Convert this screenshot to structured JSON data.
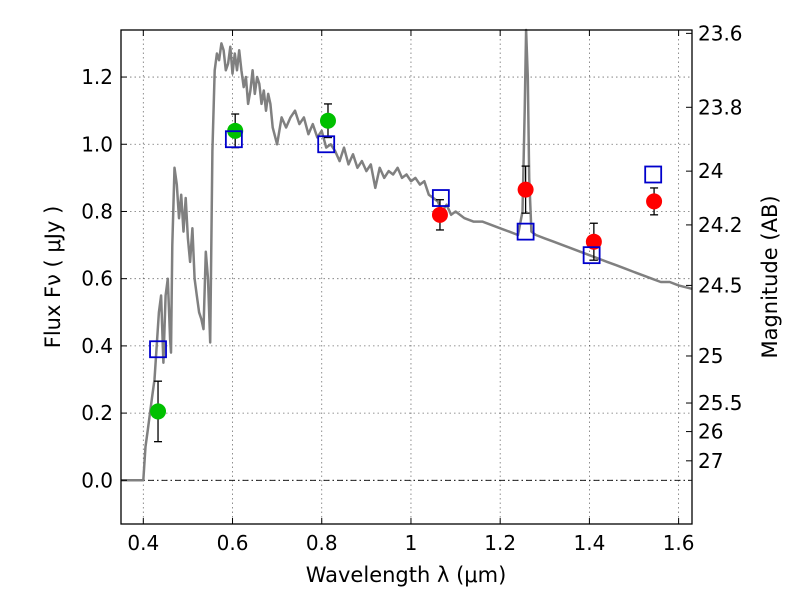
{
  "chart_data": {
    "type": "scatter",
    "xlabel": "Wavelength  λ (μm)",
    "ylabel": "Flux  Fν  ( μJy )",
    "ylabel_right": "Magnitude (AB)",
    "xlim": [
      0.35,
      1.63
    ],
    "ylim": [
      -0.13,
      1.34
    ],
    "x_ticks": [
      0.4,
      0.6,
      0.8,
      1.0,
      1.2,
      1.4,
      1.6
    ],
    "x_tick_labels": [
      "0.4",
      "0.6",
      "0.8",
      "1",
      "1.2",
      "1.4",
      "1.6"
    ],
    "y_ticks": [
      0.0,
      0.2,
      0.4,
      0.6,
      0.8,
      1.0,
      1.2
    ],
    "y_tick_labels": [
      "0.0",
      "0.2",
      "0.4",
      "0.6",
      "0.8",
      "1.0",
      "1.2"
    ],
    "right_ticks": [
      {
        "label": "23.6",
        "flux": 1.33
      },
      {
        "label": "23.8",
        "flux": 1.11
      },
      {
        "label": "24",
        "flux": 0.92
      },
      {
        "label": "24.2",
        "flux": 0.76
      },
      {
        "label": "24.5",
        "flux": 0.58
      },
      {
        "label": "25",
        "flux": 0.37
      },
      {
        "label": "25.5",
        "flux": 0.23
      },
      {
        "label": "26",
        "flux": 0.145
      },
      {
        "label": "27",
        "flux": 0.058
      }
    ],
    "grid": true,
    "colors": {
      "model": "#808080",
      "green_points": "#00c000",
      "red_points": "#ff0000",
      "model_boxes": "#0000cc",
      "error_bars": "#000000"
    },
    "model_sed": {
      "x": [
        0.35,
        0.4,
        0.405,
        0.41,
        0.415,
        0.42,
        0.425,
        0.43,
        0.435,
        0.44,
        0.445,
        0.45,
        0.455,
        0.46,
        0.462,
        0.465,
        0.47,
        0.475,
        0.48,
        0.485,
        0.49,
        0.495,
        0.5,
        0.505,
        0.51,
        0.515,
        0.52,
        0.525,
        0.53,
        0.535,
        0.54,
        0.545,
        0.55,
        0.555,
        0.56,
        0.565,
        0.57,
        0.575,
        0.58,
        0.585,
        0.59,
        0.595,
        0.6,
        0.605,
        0.61,
        0.615,
        0.62,
        0.625,
        0.63,
        0.635,
        0.64,
        0.645,
        0.65,
        0.655,
        0.66,
        0.665,
        0.67,
        0.675,
        0.68,
        0.685,
        0.69,
        0.7,
        0.71,
        0.72,
        0.73,
        0.74,
        0.75,
        0.76,
        0.77,
        0.78,
        0.79,
        0.8,
        0.81,
        0.82,
        0.83,
        0.84,
        0.85,
        0.86,
        0.87,
        0.88,
        0.89,
        0.9,
        0.91,
        0.92,
        0.93,
        0.94,
        0.95,
        0.96,
        0.97,
        0.98,
        0.99,
        1.0,
        1.01,
        1.02,
        1.03,
        1.04,
        1.05,
        1.06,
        1.07,
        1.08,
        1.09,
        1.1,
        1.12,
        1.14,
        1.16,
        1.18,
        1.2,
        1.22,
        1.24,
        1.25,
        1.255,
        1.258,
        1.262,
        1.265,
        1.27,
        1.28,
        1.3,
        1.32,
        1.34,
        1.36,
        1.38,
        1.4,
        1.42,
        1.44,
        1.46,
        1.48,
        1.5,
        1.52,
        1.54,
        1.56,
        1.58,
        1.6,
        1.63
      ],
      "y": [
        0.0,
        0.0,
        0.1,
        0.15,
        0.2,
        0.25,
        0.3,
        0.4,
        0.5,
        0.55,
        0.35,
        0.55,
        0.6,
        0.42,
        0.38,
        0.7,
        0.93,
        0.88,
        0.78,
        0.85,
        0.74,
        0.84,
        0.72,
        0.65,
        0.75,
        0.6,
        0.55,
        0.5,
        0.48,
        0.45,
        0.68,
        0.6,
        0.41,
        0.98,
        1.22,
        1.27,
        1.25,
        1.3,
        1.28,
        1.22,
        1.24,
        1.29,
        1.21,
        1.27,
        1.22,
        1.28,
        1.22,
        1.17,
        1.2,
        1.12,
        1.16,
        1.22,
        1.15,
        1.2,
        1.18,
        1.12,
        1.16,
        1.1,
        1.15,
        1.12,
        1.05,
        1.0,
        1.08,
        1.05,
        1.08,
        1.1,
        1.06,
        1.08,
        1.03,
        1.06,
        1.02,
        1.04,
        0.99,
        1.0,
        0.98,
        0.95,
        0.99,
        0.94,
        0.97,
        0.93,
        0.95,
        0.92,
        0.94,
        0.87,
        0.93,
        0.9,
        0.92,
        0.91,
        0.93,
        0.9,
        0.91,
        0.89,
        0.9,
        0.88,
        0.89,
        0.85,
        0.84,
        0.83,
        0.8,
        0.82,
        0.79,
        0.8,
        0.78,
        0.77,
        0.77,
        0.76,
        0.75,
        0.74,
        0.73,
        0.8,
        1.1,
        1.34,
        1.2,
        0.9,
        0.74,
        0.73,
        0.72,
        0.71,
        0.7,
        0.69,
        0.68,
        0.67,
        0.66,
        0.65,
        0.64,
        0.63,
        0.62,
        0.61,
        0.6,
        0.59,
        0.59,
        0.58,
        0.57
      ]
    },
    "series": [
      {
        "style": "green-circle",
        "points": [
          {
            "x": 0.433,
            "y": 0.205,
            "err": 0.09
          },
          {
            "x": 0.606,
            "y": 1.04,
            "err": 0.05
          },
          {
            "x": 0.814,
            "y": 1.07,
            "err": 0.05
          }
        ]
      },
      {
        "style": "red-circle",
        "points": [
          {
            "x": 1.065,
            "y": 0.79,
            "err": 0.045
          },
          {
            "x": 1.257,
            "y": 0.865,
            "err": 0.07
          },
          {
            "x": 1.41,
            "y": 0.71,
            "err": 0.055
          },
          {
            "x": 1.545,
            "y": 0.83,
            "err": 0.04
          }
        ]
      },
      {
        "style": "blue-open-square",
        "points": [
          {
            "x": 0.433,
            "y": 0.39
          },
          {
            "x": 0.603,
            "y": 1.015
          },
          {
            "x": 0.81,
            "y": 1.0
          },
          {
            "x": 1.067,
            "y": 0.84
          },
          {
            "x": 1.257,
            "y": 0.74
          },
          {
            "x": 1.405,
            "y": 0.67
          },
          {
            "x": 1.543,
            "y": 0.91
          }
        ]
      }
    ]
  }
}
